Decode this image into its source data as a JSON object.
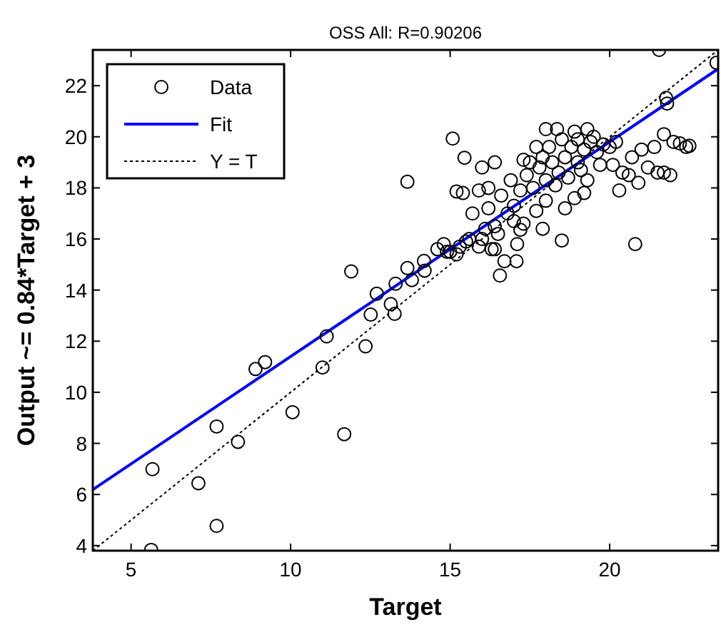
{
  "chart_data": {
    "type": "scatter",
    "title": "OSS All: R=0.90206",
    "xlabel": "Target",
    "ylabel": "Output ~= 0.84*Target + 3",
    "xlim": [
      3.8,
      23.4
    ],
    "ylim": [
      3.8,
      23.4
    ],
    "xticks": [
      5,
      10,
      15,
      20
    ],
    "yticks": [
      4,
      6,
      8,
      10,
      12,
      14,
      16,
      18,
      20,
      22
    ],
    "grid": false,
    "legend": "top left",
    "series": [
      {
        "name": "Data",
        "marker": "circle",
        "color": "#000000",
        "x": [
          5.63,
          5.67,
          7.11,
          7.68,
          7.68,
          8.35,
          8.9,
          9.2,
          10.06,
          11.0,
          11.13,
          11.68,
          12.35,
          12.51,
          12.7,
          13.14,
          13.26,
          11.9,
          13.29,
          13.8,
          13.66,
          14.18,
          14.2,
          18.5,
          20.8,
          14.6,
          14.9,
          15.2,
          15.5,
          16.4,
          16.56,
          16.7,
          17.08,
          17.2,
          17.0,
          13.66,
          15.08,
          15.45,
          15.2,
          21.55,
          23.35,
          21.77,
          21.8,
          22.2,
          22.5,
          21.9,
          21.7,
          20.6,
          18.35,
          16.0,
          16.4,
          16.8,
          16.2,
          16.6,
          17.0,
          17.2,
          16.9,
          17.4,
          17.6,
          17.8,
          18.0,
          17.5,
          17.9,
          18.2,
          18.4,
          18.6,
          18.8,
          19.0,
          19.2,
          19.4,
          19.6,
          19.8,
          20.0,
          20.2,
          19.5,
          19.0,
          18.5,
          18.1,
          17.7,
          17.3,
          18.3,
          18.7,
          19.1,
          19.3,
          19.7,
          20.1,
          20.4,
          20.7,
          21.0,
          21.2,
          21.4,
          20.9,
          18.9,
          18.6,
          19.2,
          17.7,
          17.3,
          17.9,
          16.5,
          17.1,
          16.3,
          15.6,
          15.3,
          15.0,
          14.8,
          15.9,
          16.1,
          15.7,
          15.4,
          15.9,
          16.2,
          16.0,
          16.4,
          18.0,
          20.3,
          21.5,
          22.0,
          22.4,
          21.7,
          18.9,
          19.3,
          18.0
        ],
        "values": [
          3.83,
          6.99,
          6.44,
          8.66,
          4.77,
          8.06,
          10.91,
          11.18,
          9.22,
          10.97,
          12.19,
          8.36,
          11.8,
          13.04,
          13.86,
          13.45,
          13.07,
          14.73,
          14.25,
          14.39,
          14.86,
          15.14,
          14.76,
          15.94,
          15.8,
          15.6,
          15.5,
          15.4,
          15.9,
          15.6,
          14.57,
          15.13,
          15.13,
          16.36,
          16.7,
          18.24,
          19.93,
          19.18,
          17.86,
          23.4,
          22.9,
          21.52,
          21.3,
          19.74,
          19.65,
          18.5,
          18.6,
          18.5,
          20.3,
          16.0,
          16.5,
          17.0,
          17.2,
          17.7,
          17.3,
          17.9,
          18.3,
          18.5,
          18.0,
          18.8,
          18.3,
          19.0,
          19.2,
          19.0,
          18.6,
          19.2,
          19.6,
          19.0,
          19.5,
          19.8,
          19.4,
          19.7,
          19.6,
          19.8,
          20.0,
          19.9,
          19.9,
          19.6,
          19.6,
          19.1,
          18.1,
          18.4,
          18.7,
          18.3,
          18.9,
          18.9,
          18.6,
          19.2,
          19.5,
          18.8,
          19.6,
          18.2,
          17.6,
          17.2,
          17.8,
          17.1,
          16.6,
          16.4,
          16.2,
          15.8,
          15.6,
          16.0,
          15.7,
          15.5,
          15.8,
          15.7,
          16.4,
          17.0,
          17.8,
          17.9,
          18.0,
          18.8,
          19.0,
          17.5,
          17.9,
          18.6,
          19.8,
          19.6,
          20.1,
          20.2,
          20.3,
          20.3
        ]
      },
      {
        "name": "Fit",
        "type": "line",
        "line_style": "solid",
        "color": "#0000ff",
        "x": [
          3.8,
          23.4
        ],
        "values": [
          6.19,
          22.66
        ]
      },
      {
        "name": "Y = T",
        "type": "line",
        "line_style": "dotted",
        "color": "#000000",
        "x": [
          3.8,
          23.4
        ],
        "values": [
          3.8,
          23.4
        ]
      }
    ]
  }
}
